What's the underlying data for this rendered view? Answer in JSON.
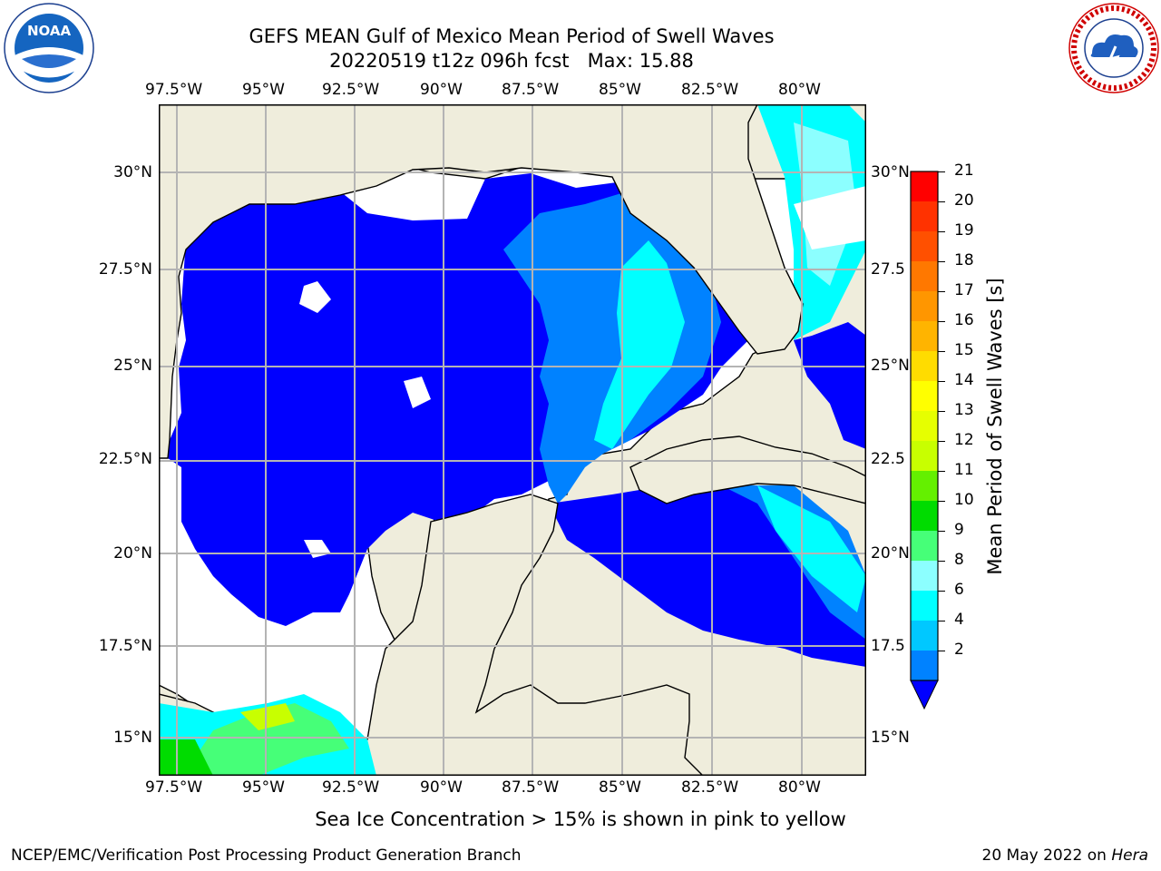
{
  "header": {
    "title_line1": "GEFS MEAN Gulf of Mexico Mean Period of Swell Waves",
    "title_line2": "20220519 t12z 096h fcst   Max: 15.88"
  },
  "logos": {
    "left": "noaa-logo",
    "right": "national-weather-service-logo"
  },
  "map": {
    "lon_labels": [
      "97.5°W",
      "95°W",
      "92.5°W",
      "90°W",
      "87.5°W",
      "85°W",
      "82.5°W",
      "80°W"
    ],
    "lat_labels_left": [
      "30°N",
      "27.5°N",
      "25°N",
      "22.5°N",
      "20°N",
      "17.5°N",
      "15°N"
    ],
    "lat_labels_right": [
      "30°N",
      "27.5",
      "25°N",
      "22.5",
      "20°N",
      "17.5",
      "15°N"
    ],
    "colors": {
      "land": "#efeddc",
      "grid": "#b4b4b4",
      "coast": "#000000",
      "level_2_4": "#0000ff",
      "level_4_6": "#0082ff",
      "level_6_8": "#00ffff",
      "level_8_9": "#8cffff"
    }
  },
  "colorbar": {
    "label": "Mean Period of Swell Waves [s]",
    "ticks": [
      "21",
      "20",
      "19",
      "18",
      "17",
      "16",
      "15",
      "14",
      "13",
      "12",
      "11",
      "10",
      "9",
      "8",
      "6",
      "4",
      "2"
    ],
    "colors": [
      "#ff0000",
      "#ff3200",
      "#ff5000",
      "#ff7800",
      "#ff9600",
      "#ffb400",
      "#ffdc00",
      "#ffff00",
      "#e6ff00",
      "#c8ff00",
      "#64f000",
      "#00dc00",
      "#46ff78",
      "#8cffff",
      "#00ffff",
      "#00c8ff",
      "#0082ff"
    ],
    "extend_color": "#0000ff"
  },
  "caption": "Sea Ice Concentration > 15% is shown in pink to yellow",
  "footer": {
    "left": "NCEP/EMC/Verification Post Processing Product Generation Branch",
    "right_prefix": "20 May 2022 on ",
    "right_host": "Hera"
  }
}
